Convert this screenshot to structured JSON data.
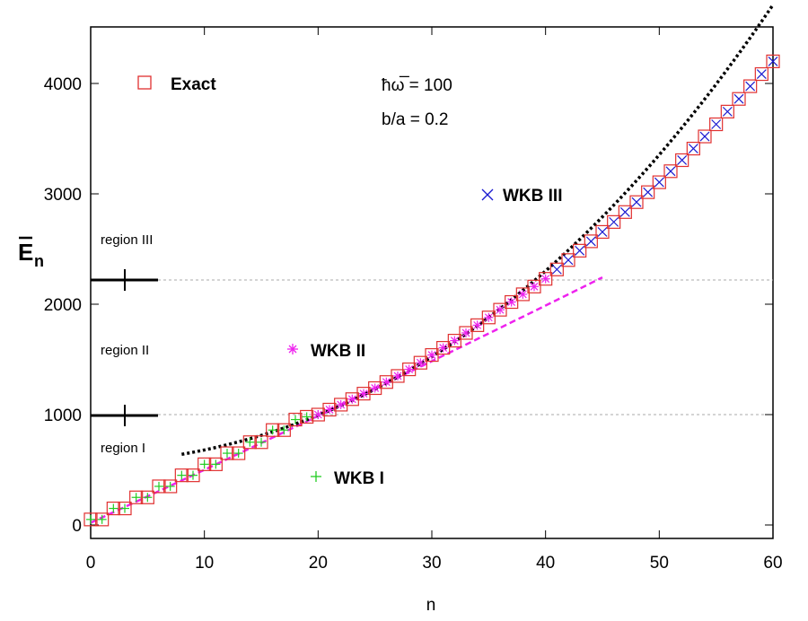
{
  "chart_data": {
    "type": "scatter",
    "xlabel": "n",
    "ylabel_main": "E",
    "ylabel_sub": "n",
    "xlim": [
      0,
      60
    ],
    "ylim": [
      -100,
      4500
    ],
    "xticks": [
      "0",
      "10",
      "20",
      "30",
      "40",
      "50",
      "60"
    ],
    "yticks": [
      "0",
      "1000",
      "2000",
      "3000",
      "4000"
    ],
    "legend": {
      "exact": "Exact",
      "wkb1": "WKB I",
      "wkb2": "WKB II",
      "wkb3": "WKB III"
    },
    "params": [
      "ħω̅ = 100",
      "b/a = 0.2"
    ],
    "regions": {
      "region1": "region I",
      "region2": "region II",
      "region3": "region III",
      "boundaries": [
        1000,
        2220
      ]
    },
    "series": [
      {
        "name": "Exact",
        "marker": "square",
        "n": [
          0,
          1,
          2,
          3,
          4,
          5,
          6,
          7,
          8,
          9,
          10,
          11,
          12,
          13,
          14,
          15,
          16,
          17,
          18,
          19,
          20,
          21,
          22,
          23,
          24,
          25,
          26,
          27,
          28,
          29,
          30,
          31,
          32,
          33,
          34,
          35,
          36,
          37,
          38,
          39,
          40,
          41,
          42,
          43,
          44,
          45,
          46,
          47,
          48,
          49,
          50,
          51,
          52,
          53,
          54,
          55,
          56,
          57,
          58,
          59,
          60
        ],
        "values": [
          50,
          50,
          150,
          150,
          250,
          250,
          350,
          350,
          450,
          450,
          550,
          550,
          650,
          650,
          750,
          750,
          860,
          860,
          955,
          980,
          1000,
          1045,
          1090,
          1140,
          1190,
          1240,
          1295,
          1350,
          1410,
          1470,
          1540,
          1605,
          1670,
          1740,
          1810,
          1880,
          1950,
          2020,
          2090,
          2160,
          2230,
          2315,
          2400,
          2485,
          2570,
          2655,
          2745,
          2835,
          2925,
          3015,
          3105,
          3205,
          3305,
          3410,
          3520,
          3630,
          3745,
          3860,
          3975,
          4085,
          4200
        ]
      },
      {
        "name": "WKB I",
        "marker": "plus",
        "n": [
          0,
          1,
          2,
          3,
          4,
          5,
          6,
          7,
          8,
          9,
          10,
          11,
          12,
          13,
          14,
          15,
          16,
          17,
          18,
          19,
          20
        ],
        "values": [
          50,
          50,
          150,
          150,
          250,
          250,
          350,
          350,
          450,
          450,
          550,
          550,
          650,
          650,
          750,
          750,
          860,
          860,
          955,
          980,
          1000
        ]
      },
      {
        "name": "WKB II",
        "marker": "asterisk",
        "n": [
          20,
          21,
          22,
          23,
          24,
          25,
          26,
          27,
          28,
          29,
          30,
          31,
          32,
          33,
          34,
          35,
          36,
          37,
          38,
          39,
          40
        ],
        "values": [
          1000,
          1045,
          1090,
          1140,
          1190,
          1240,
          1295,
          1350,
          1410,
          1470,
          1540,
          1605,
          1670,
          1740,
          1810,
          1880,
          1950,
          2020,
          2090,
          2160,
          2230
        ]
      },
      {
        "name": "WKB III",
        "marker": "cross",
        "n": [
          41,
          42,
          43,
          44,
          45,
          46,
          47,
          48,
          49,
          50,
          51,
          52,
          53,
          54,
          55,
          56,
          57,
          58,
          59,
          60
        ],
        "values": [
          2315,
          2400,
          2485,
          2570,
          2655,
          2745,
          2835,
          2925,
          3015,
          3105,
          3205,
          3305,
          3410,
          3520,
          3630,
          3745,
          3860,
          3975,
          4085,
          4200
        ]
      }
    ],
    "colors": {
      "exact": "#e03030",
      "wkb1": "#22cc22",
      "wkb2": "#ee22ee",
      "wkb3": "#1a1ad0",
      "fit": "#000000",
      "dashed_fit": "#ee22ee",
      "grid": "#aaaaaa"
    }
  }
}
